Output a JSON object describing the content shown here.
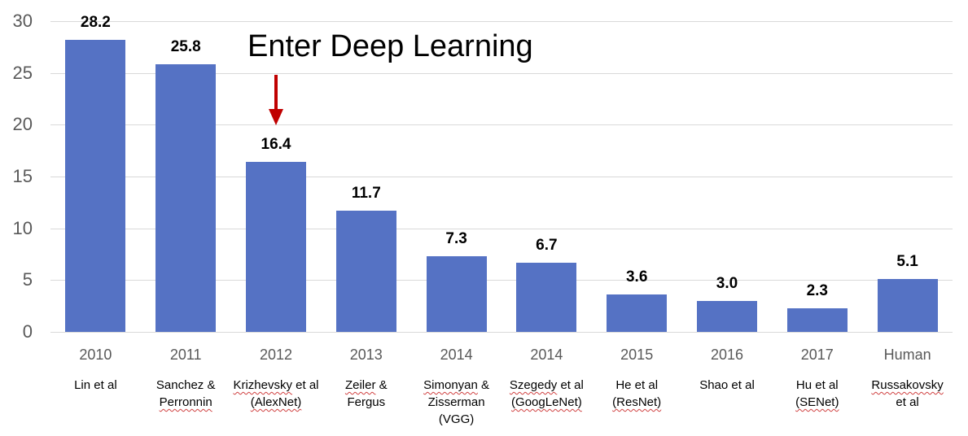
{
  "chart_data": {
    "type": "bar",
    "title": "",
    "annotation": "Enter Deep Learning",
    "annotation_target": "2012",
    "xlabel": "",
    "ylabel": "",
    "ylim": [
      0,
      30
    ],
    "yticks": [
      0,
      5,
      10,
      15,
      20,
      25,
      30
    ],
    "grid": true,
    "legend": null,
    "bar_color": "#5572c4",
    "arrow_color": "#c00000",
    "categories": [
      "2010",
      "2011",
      "2012",
      "2013",
      "2014",
      "2014",
      "2015",
      "2016",
      "2017",
      "Human"
    ],
    "authors": [
      [
        "Lin et al"
      ],
      [
        "Sanchez &",
        "Perronnin"
      ],
      [
        "Krizhevsky et al",
        "(AlexNet)"
      ],
      [
        "Zeiler &",
        "Fergus"
      ],
      [
        "Simonyan &",
        "Zisserman",
        "(VGG)"
      ],
      [
        "Szegedy et al",
        "(GoogLeNet)"
      ],
      [
        "He et al",
        "(ResNet)"
      ],
      [
        "Shao et al"
      ],
      [
        "Hu et al",
        "(SENet)"
      ],
      [
        "Russakovsky",
        "et al"
      ]
    ],
    "values": [
      28.2,
      25.8,
      16.4,
      11.7,
      7.3,
      6.7,
      3.6,
      3.0,
      2.3,
      5.1
    ],
    "value_labels": [
      "28.2",
      "25.8",
      "16.4",
      "11.7",
      "7.3",
      "6.7",
      "3.6",
      "3.0",
      "2.3",
      "5.1"
    ]
  }
}
